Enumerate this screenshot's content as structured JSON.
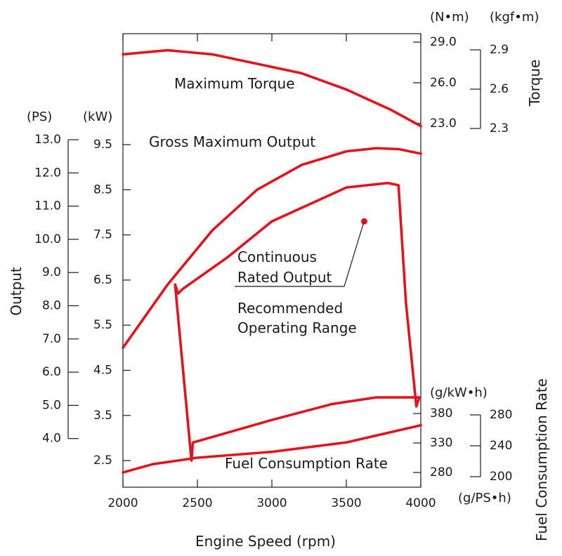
{
  "chart_data": {
    "type": "line",
    "x_axis": {
      "label": "Engine Speed (rpm)",
      "ticks": [
        "2000",
        "2500",
        "3000",
        "3500",
        "4000"
      ],
      "range": [
        2000,
        4000
      ]
    },
    "left_axes": {
      "title": "Output",
      "ps": {
        "unit": "(PS)",
        "ticks": [
          "13.0",
          "12.0",
          "11.0",
          "10.0",
          "9.0",
          "8.0",
          "7.0",
          "6.0",
          "5.0",
          "4.0"
        ]
      },
      "kw": {
        "unit": "(kW)",
        "ticks": [
          "9.5",
          "8.5",
          "7.5",
          "6.5",
          "5.5",
          "4.5",
          "3.5",
          "2.5"
        ]
      }
    },
    "right_torque_axes": {
      "title": "Torque",
      "nm": {
        "unit": "(N•m)",
        "ticks": [
          "29.0",
          "26.0",
          "23.0"
        ]
      },
      "kgfm": {
        "unit": "(kgf•m)",
        "ticks": [
          "2.9",
          "2.6",
          "2.3"
        ]
      }
    },
    "right_fuel_axes": {
      "title": "Fuel Consumption Rate",
      "gkwh": {
        "unit": "(g/kW•h)",
        "ticks": [
          "380",
          "330",
          "280"
        ]
      },
      "gpsh": {
        "unit": "(g/PS•h)",
        "ticks": [
          "280",
          "240",
          "200"
        ]
      }
    },
    "annotations": {
      "torque": "Maximum Torque",
      "gross": "Gross Maximum Output",
      "rated_line1": "Continuous",
      "rated_line2": "Rated Output",
      "range_line1": "Recommended",
      "range_line2": "Operating Range",
      "fuel": "Fuel Consumption Rate"
    },
    "series": [
      {
        "name": "Maximum Torque",
        "unit": "N•m",
        "x": [
          2000,
          2300,
          2600,
          2900,
          3200,
          3500,
          3800,
          4000
        ],
        "y": [
          28.1,
          28.4,
          28.1,
          27.4,
          26.7,
          25.5,
          24.0,
          22.8
        ]
      },
      {
        "name": "Gross Maximum Output",
        "unit": "kW",
        "x": [
          2000,
          2300,
          2600,
          2900,
          3200,
          3500,
          3700,
          3850,
          4000
        ],
        "y": [
          5.0,
          6.4,
          7.6,
          8.5,
          9.05,
          9.35,
          9.42,
          9.4,
          9.3
        ]
      },
      {
        "name": "Fuel Consumption Rate",
        "unit": "g/kW•h",
        "x": [
          2000,
          2200,
          2500,
          3000,
          3500,
          4000
        ],
        "y": [
          280,
          294,
          305,
          315,
          331,
          360
        ]
      },
      {
        "name": "Recommended Operating Range",
        "unit": "kW",
        "x": [
          2350,
          2460,
          2470,
          3000,
          3400,
          3700,
          3990,
          3970,
          3900,
          3850,
          3780,
          3500,
          3000,
          2700,
          2400,
          2370,
          2350
        ],
        "y": [
          6.4,
          2.5,
          2.9,
          3.4,
          3.75,
          3.9,
          3.9,
          3.7,
          6.0,
          8.6,
          8.65,
          8.55,
          7.8,
          7.0,
          6.3,
          6.2,
          6.4
        ]
      }
    ],
    "points": [
      {
        "name": "Continuous Rated Output",
        "x": 3620,
        "y": 7.8,
        "unit": "kW",
        "color": "#e5131b"
      }
    ],
    "curve_color": "#e5131b",
    "grid": false
  }
}
